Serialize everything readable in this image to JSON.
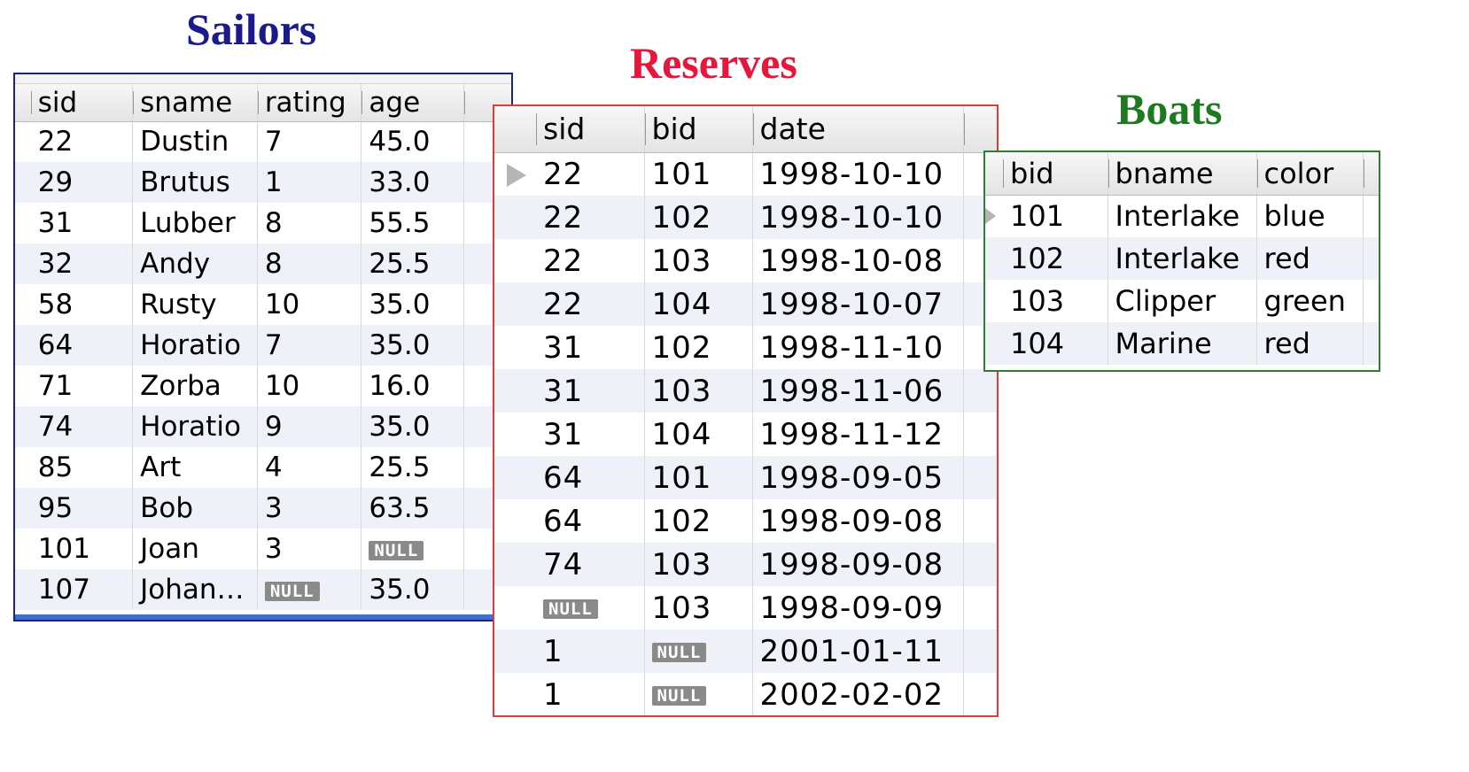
{
  "sailors": {
    "title": "Sailors",
    "title_color": "#1a1a8c",
    "border_color": "#1a237e",
    "columns": [
      "sid",
      "sname",
      "rating",
      "age"
    ],
    "rows": [
      [
        "22",
        "Dustin",
        "7",
        "45.0"
      ],
      [
        "29",
        "Brutus",
        "1",
        "33.0"
      ],
      [
        "31",
        "Lubber",
        "8",
        "55.5"
      ],
      [
        "32",
        "Andy",
        "8",
        "25.5"
      ],
      [
        "58",
        "Rusty",
        "10",
        "35.0"
      ],
      [
        "64",
        "Horatio",
        "7",
        "35.0"
      ],
      [
        "71",
        "Zorba",
        "10",
        "16.0"
      ],
      [
        "74",
        "Horatio",
        "9",
        "35.0"
      ],
      [
        "85",
        "Art",
        "4",
        "25.5"
      ],
      [
        "95",
        "Bob",
        "3",
        "63.5"
      ],
      [
        "101",
        "Joan",
        "3",
        "NULL"
      ],
      [
        "107",
        "Johan…",
        "NULL",
        "35.0"
      ]
    ]
  },
  "reserves": {
    "title": "Reserves",
    "title_color": "#e8163a",
    "border_color": "#e53935",
    "columns": [
      "sid",
      "bid",
      "date"
    ],
    "rows": [
      [
        "22",
        "101",
        "1998-10-10"
      ],
      [
        "22",
        "102",
        "1998-10-10"
      ],
      [
        "22",
        "103",
        "1998-10-08"
      ],
      [
        "22",
        "104",
        "1998-10-07"
      ],
      [
        "31",
        "102",
        "1998-11-10"
      ],
      [
        "31",
        "103",
        "1998-11-06"
      ],
      [
        "31",
        "104",
        "1998-11-12"
      ],
      [
        "64",
        "101",
        "1998-09-05"
      ],
      [
        "64",
        "102",
        "1998-09-08"
      ],
      [
        "74",
        "103",
        "1998-09-08"
      ],
      [
        "NULL",
        "103",
        "1998-09-09"
      ],
      [
        "1",
        "NULL",
        "2001-01-11"
      ],
      [
        "1",
        "NULL",
        "2002-02-02"
      ]
    ]
  },
  "boats": {
    "title": "Boats",
    "title_color": "#1e7a1e",
    "border_color": "#2e7d32",
    "columns": [
      "bid",
      "bname",
      "color"
    ],
    "rows": [
      [
        "101",
        "Interlake",
        "blue"
      ],
      [
        "102",
        "Interlake",
        "red"
      ],
      [
        "103",
        "Clipper",
        "green"
      ],
      [
        "104",
        "Marine",
        "red"
      ]
    ]
  },
  "null_label": "NULL",
  "row_marker_icon": "triangle-right-icon"
}
